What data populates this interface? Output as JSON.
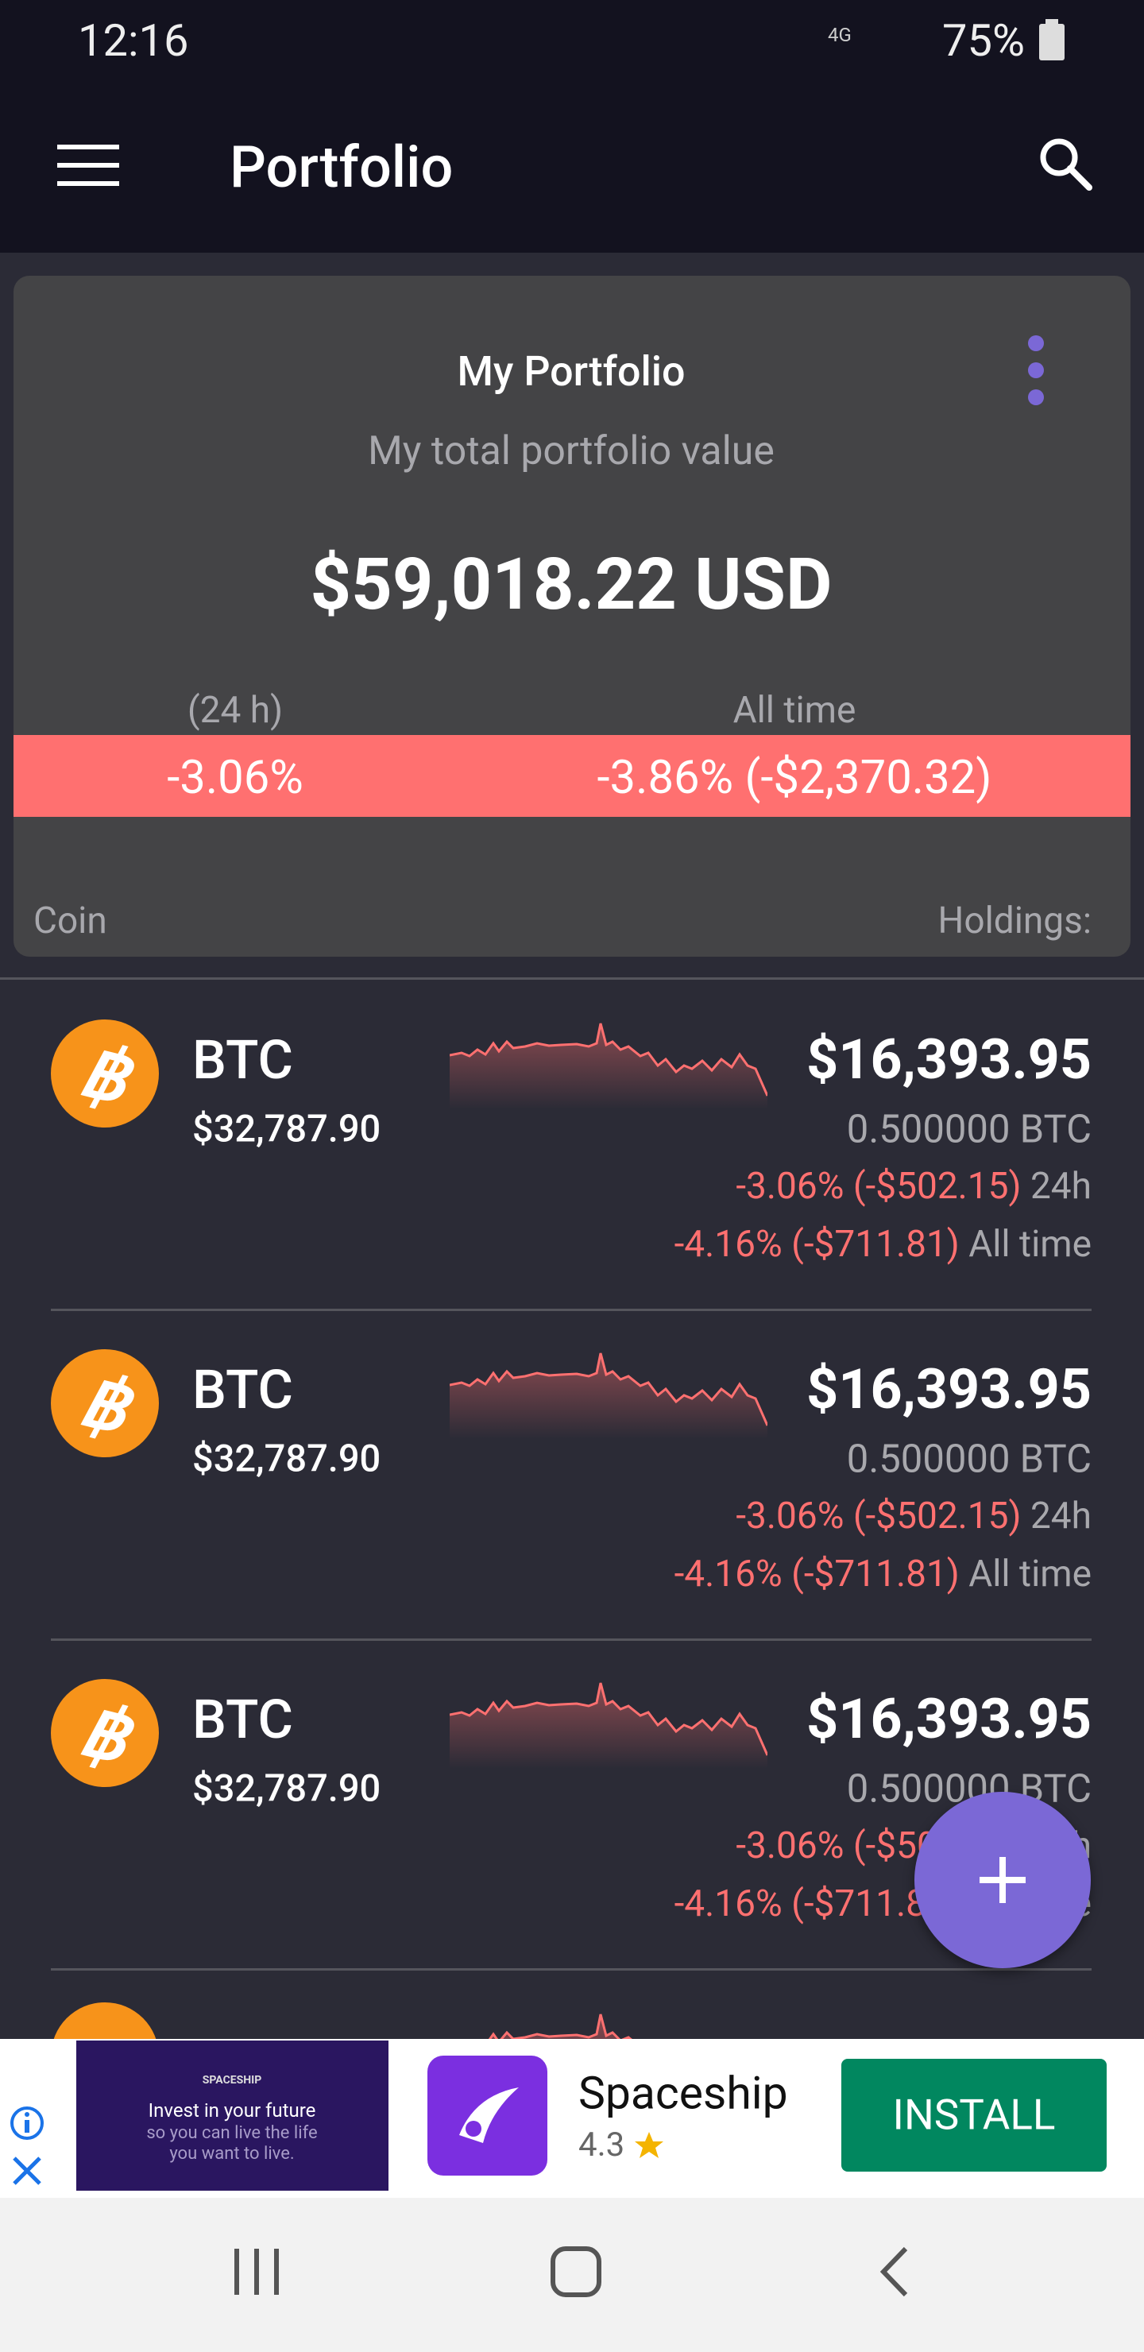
{
  "status_bar": {
    "time": "12:16",
    "network": "4G",
    "battery": "75%"
  },
  "app_bar": {
    "title": "Portfolio"
  },
  "portfolio": {
    "title": "My Portfolio",
    "subtitle": "My total portfolio value",
    "total": "$59,018.22 USD",
    "period_label": "(24 h)",
    "all_time_label": "All time",
    "change_24h": "-3.06%",
    "change_all_time": "-3.86% (-$2,370.32)",
    "coin_header": "Coin",
    "holdings_header": "Holdings:"
  },
  "coins": [
    {
      "symbol": "BTC",
      "price": "$32,787.90",
      "value": "$16,393.95",
      "holding": "0.500000 BTC",
      "change_24h": "-3.06% (-$502.15)",
      "change_24h_suffix": "24h",
      "change_all": "-4.16% (-$711.81)",
      "change_all_suffix": "All time"
    },
    {
      "symbol": "BTC",
      "price": "$32,787.90",
      "value": "$16,393.95",
      "holding": "0.500000 BTC",
      "change_24h": "-3.06% (-$502.15)",
      "change_24h_suffix": "24h",
      "change_all": "-4.16% (-$711.81)",
      "change_all_suffix": "All time"
    },
    {
      "symbol": "BTC",
      "price": "$32,787.90",
      "value": "$16,393.95",
      "holding": "0.500000 BTC",
      "change_24h": "-3.06% (-$502.15)",
      "change_24h_suffix": "24h",
      "change_all": "-4.16% (-$711.81)",
      "change_all_suffix": "All time"
    }
  ],
  "ad": {
    "brand_small": "SPACESHIP",
    "tagline": "Invest in your future",
    "tagline_sub": "so you can live the life you want to live.",
    "app_name": "Spaceship",
    "rating": "4.3",
    "button": "INSTALL"
  }
}
